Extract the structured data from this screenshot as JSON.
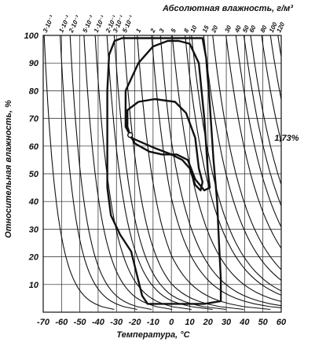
{
  "chart_data": {
    "type": "line",
    "title": "Абсолютная влажность, г/м³",
    "xlabel": "Температура, °С",
    "ylabel": "Относительная влажность, %",
    "xlim": [
      -70,
      60
    ],
    "ylim": [
      0,
      100
    ],
    "x_ticks": [
      "-70",
      "-60",
      "-50",
      "-40",
      "-30",
      "-20",
      "-10",
      "0",
      "10",
      "20",
      "30",
      "40",
      "50",
      "60"
    ],
    "y_ticks": [
      "10",
      "20",
      "30",
      "40",
      "50",
      "60",
      "70",
      "80",
      "90",
      "100"
    ],
    "grid": true,
    "top_axis": {
      "label": "Абсолютная влажность, г/м³",
      "ticks": [
        "3·10⁻³",
        "1·10⁻²",
        "2·10⁻²",
        "5·10⁻²",
        "1·10⁻¹",
        "2·10⁻¹",
        "3·10⁻¹",
        "5·10⁻¹",
        "1",
        "2",
        "3",
        "5",
        "8",
        "10",
        "15",
        "20",
        "30",
        "40",
        "50",
        "60",
        "80",
        "100",
        "120"
      ],
      "values": [
        0.003,
        0.01,
        0.02,
        0.05,
        0.1,
        0.2,
        0.3,
        0.5,
        1,
        2,
        3,
        5,
        8,
        10,
        15,
        20,
        30,
        40,
        50,
        60,
        80,
        100,
        120
      ]
    },
    "annotations": [
      {
        "text": "1,73%",
        "x": 55,
        "y": 63
      }
    ],
    "series": [
      {
        "points": [
          [
            -27,
            99
          ],
          [
            -12,
            99
          ],
          [
            0,
            99
          ],
          [
            12,
            99
          ],
          [
            17,
            99
          ],
          [
            19,
            92
          ],
          [
            21,
            75
          ],
          [
            23,
            55
          ],
          [
            25,
            40
          ],
          [
            26,
            25
          ],
          [
            27,
            12
          ],
          [
            27,
            4
          ],
          [
            18,
            3
          ],
          [
            5,
            3
          ],
          [
            -5,
            3
          ],
          [
            -13,
            3
          ],
          [
            -16,
            6
          ],
          [
            -19,
            14
          ],
          [
            -22,
            22
          ],
          [
            -28,
            28
          ],
          [
            -33,
            35
          ],
          [
            -35,
            45
          ],
          [
            -35,
            60
          ],
          [
            -35,
            80
          ],
          [
            -34,
            93
          ],
          [
            -31,
            98
          ],
          [
            -27,
            99
          ]
        ]
      },
      {
        "points": [
          [
            -2,
            98
          ],
          [
            4,
            98
          ],
          [
            10,
            97
          ],
          [
            15,
            90
          ],
          [
            18,
            70
          ],
          [
            20,
            50
          ],
          [
            21,
            45
          ],
          [
            18,
            44
          ],
          [
            13,
            48
          ],
          [
            9,
            55
          ],
          [
            3,
            57
          ],
          [
            -5,
            57
          ],
          [
            -12,
            58
          ],
          [
            -20,
            61
          ],
          [
            -25,
            67
          ],
          [
            -25,
            80
          ],
          [
            -18,
            90
          ],
          [
            -10,
            96
          ],
          [
            -2,
            98
          ]
        ]
      },
      {
        "points": [
          [
            -24,
            73
          ],
          [
            -18,
            76
          ],
          [
            -9,
            77
          ],
          [
            2,
            76
          ],
          [
            8,
            72
          ],
          [
            13,
            63
          ],
          [
            15,
            52
          ],
          [
            17,
            47
          ],
          [
            16,
            44
          ],
          [
            13,
            46
          ],
          [
            10,
            52
          ],
          [
            6,
            55
          ],
          [
            0,
            57
          ],
          [
            -8,
            59
          ],
          [
            -15,
            61
          ],
          [
            -22,
            63
          ],
          [
            -24,
            67
          ],
          [
            -24,
            73
          ]
        ]
      }
    ],
    "marker": {
      "x": -22.5,
      "y": 64
    }
  }
}
